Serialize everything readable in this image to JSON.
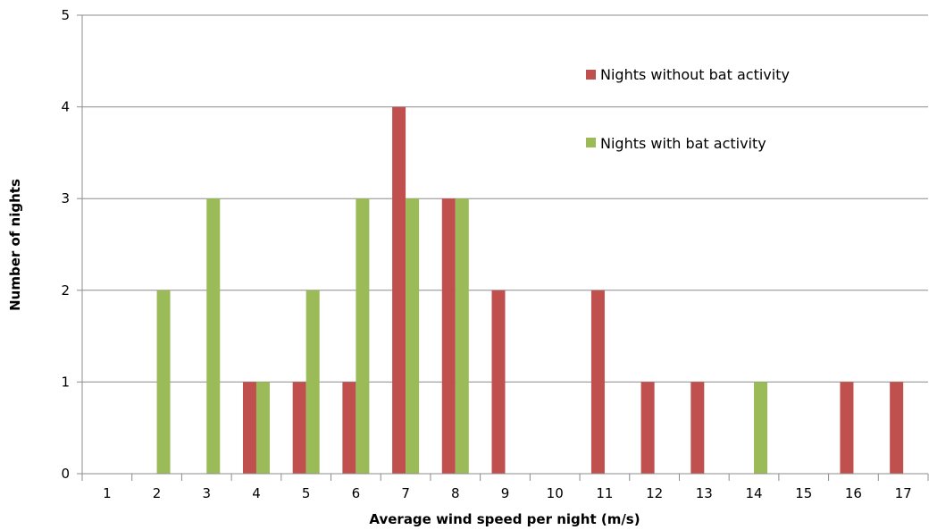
{
  "chart_data": {
    "type": "bar",
    "title": "",
    "xlabel": "Average wind speed per night (m/s)",
    "ylabel": "Number of nights",
    "categories": [
      "1",
      "2",
      "3",
      "4",
      "5",
      "6",
      "7",
      "8",
      "9",
      "10",
      "11",
      "12",
      "13",
      "14",
      "15",
      "16",
      "17"
    ],
    "ylim": [
      0,
      5
    ],
    "yticks": [
      0,
      1,
      2,
      3,
      4,
      5
    ],
    "grid": "horizontal",
    "legend_position": "top-right",
    "series": [
      {
        "name": "Nights without bat activity",
        "color": "#c0504d",
        "values": [
          0,
          0,
          0,
          1,
          1,
          1,
          4,
          3,
          2,
          0,
          2,
          1,
          1,
          0,
          0,
          1,
          1
        ]
      },
      {
        "name": "Nights with bat activity",
        "color": "#9bbb59",
        "values": [
          0,
          2,
          3,
          1,
          2,
          3,
          3,
          3,
          0,
          0,
          0,
          0,
          0,
          1,
          0,
          0,
          0
        ]
      }
    ]
  }
}
